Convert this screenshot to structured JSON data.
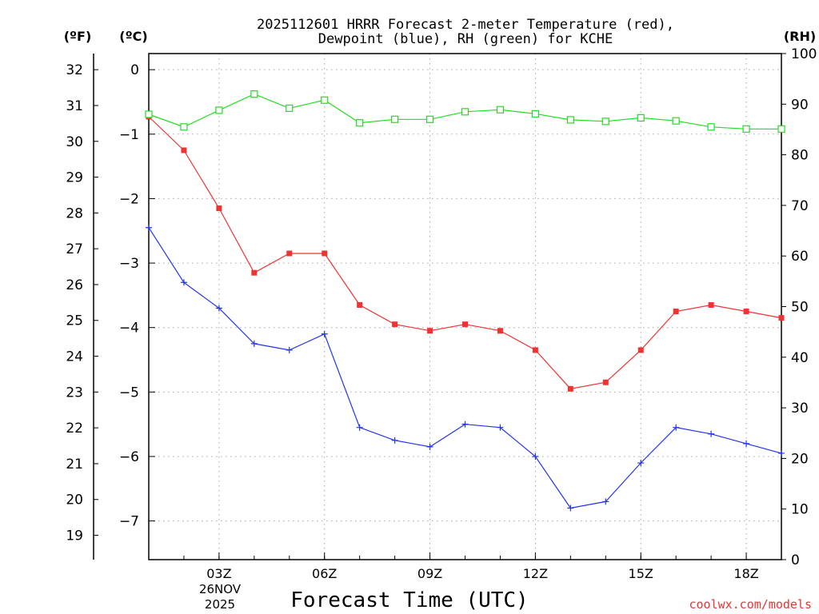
{
  "chart_data": {
    "type": "line",
    "title_line1": "2025112601 HRRR Forecast 2-meter Temperature (red),",
    "title_line2": "Dewpoint (blue), RH (green) for KCHE",
    "xlabel": "Forecast Time (UTC)",
    "watermark": "coolwx.com/models",
    "date_line1": "26NOV",
    "date_line2": "2025",
    "left_f_unit": "(ºF)",
    "left_c_unit": "(ºC)",
    "right_unit": "(RH)",
    "x_hours": [
      1,
      2,
      3,
      4,
      5,
      6,
      7,
      8,
      9,
      10,
      11,
      12,
      13,
      14,
      15,
      16,
      17,
      18,
      19
    ],
    "xlim": [
      1,
      19
    ],
    "x_ticks": [
      {
        "hour": 3,
        "label": "03Z"
      },
      {
        "hour": 6,
        "label": "06Z"
      },
      {
        "hour": 9,
        "label": "09Z"
      },
      {
        "hour": 12,
        "label": "12Z"
      },
      {
        "hour": 15,
        "label": "15Z"
      },
      {
        "hour": 18,
        "label": "18Z"
      }
    ],
    "c_ylim": [
      -7.6,
      0.25
    ],
    "c_ticks": [
      "0",
      "−1",
      "−2",
      "−3",
      "−4",
      "−5",
      "−6",
      "−7"
    ],
    "f_ticks": [
      "19",
      "20",
      "21",
      "22",
      "23",
      "24",
      "25",
      "26",
      "27",
      "28",
      "29",
      "30",
      "31",
      "32"
    ],
    "rh_ylim": [
      0,
      100
    ],
    "rh_ticks": [
      "0",
      "10",
      "20",
      "30",
      "40",
      "50",
      "60",
      "70",
      "80",
      "90",
      "100"
    ],
    "series": [
      {
        "name": "Temperature",
        "unit": "C",
        "color": "#ee3333",
        "marker": "filled-square",
        "values": [
          -0.73,
          -1.25,
          -2.15,
          -3.15,
          -2.85,
          -2.85,
          -3.65,
          -3.95,
          -4.05,
          -3.95,
          -4.05,
          -4.35,
          -4.95,
          -4.85,
          -4.35,
          -3.75,
          -3.65,
          -3.75,
          -3.85
        ]
      },
      {
        "name": "Dewpoint",
        "unit": "C",
        "color": "#2233ee",
        "marker": "plus",
        "values": [
          -2.45,
          -3.3,
          -3.7,
          -4.25,
          -4.35,
          -4.1,
          -5.55,
          -5.75,
          -5.85,
          -5.5,
          -5.55,
          -6.0,
          -6.8,
          -6.7,
          -6.1,
          -5.55,
          -5.65,
          -5.8,
          -5.95
        ]
      },
      {
        "name": "RH",
        "unit": "%",
        "color": "#22dd22",
        "marker": "open-square",
        "values": [
          88,
          85.5,
          88.8,
          92,
          89.2,
          90.8,
          86.3,
          87,
          87,
          88.5,
          88.9,
          88.1,
          86.9,
          86.6,
          87.3,
          86.7,
          85.5,
          85.1,
          85.1
        ]
      }
    ]
  }
}
